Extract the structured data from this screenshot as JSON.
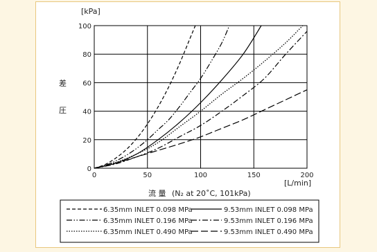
{
  "chart_data": {
    "type": "line",
    "ylabel_unit": "[kPa]",
    "ylabel_chars": [
      "差",
      "圧"
    ],
    "xlabel_main": "流 量",
    "xlabel_sub": "(N₂ at 20˚C, 101kPa)",
    "xlabel_unit": "[L/min]",
    "xlim": [
      0,
      200
    ],
    "ylim": [
      0,
      100
    ],
    "xticks": [
      0,
      50,
      100,
      150,
      200
    ],
    "yticks": [
      0,
      20,
      40,
      60,
      80,
      100
    ],
    "grid": true,
    "legend_position": "bottom",
    "series": [
      {
        "name": "6.35mm INLET 0.098 MPa",
        "dash": "dashed",
        "x": [
          0,
          10,
          20,
          30,
          40,
          50,
          60,
          70,
          80,
          90,
          95
        ],
        "y": [
          0,
          2.5,
          7,
          13,
          21,
          31,
          43,
          57,
          73,
          91,
          100
        ]
      },
      {
        "name": "6.35mm INLET 0.196 MPa",
        "dash": "dashdotdot",
        "x": [
          0,
          10,
          20,
          30,
          40,
          50,
          60,
          70,
          80,
          90,
          100,
          110,
          120,
          127
        ],
        "y": [
          0,
          2,
          5,
          9,
          14,
          20,
          27,
          34,
          43,
          53,
          63,
          75,
          88,
          100
        ]
      },
      {
        "name": "6.35mm INLET 0.490 MPa",
        "dash": "dotted",
        "x": [
          0,
          20,
          40,
          60,
          80,
          100,
          120,
          140,
          160,
          180,
          196
        ],
        "y": [
          0,
          4,
          10,
          18,
          29,
          40,
          52,
          63,
          75,
          88,
          100
        ]
      },
      {
        "name": "9.53mm INLET 0.098 MPa",
        "dash": "solid",
        "x": [
          0,
          20,
          40,
          60,
          80,
          100,
          120,
          140,
          157
        ],
        "y": [
          0,
          3.5,
          10,
          20,
          32,
          46,
          62,
          80,
          100
        ]
      },
      {
        "name": "9.53mm INLET 0.196 MPa",
        "dash": "dashdot",
        "x": [
          0,
          20,
          40,
          60,
          80,
          100,
          120,
          140,
          160,
          180,
          200
        ],
        "y": [
          0,
          3,
          8,
          14,
          22,
          30,
          40,
          51,
          63,
          80,
          96
        ]
      },
      {
        "name": "9.53mm INLET 0.490 MPa",
        "dash": "longdash",
        "x": [
          0,
          20,
          40,
          60,
          80,
          100,
          120,
          140,
          160,
          180,
          200
        ],
        "y": [
          0,
          3.5,
          8,
          12.5,
          17,
          22,
          28,
          34,
          41,
          48,
          55
        ]
      }
    ]
  }
}
